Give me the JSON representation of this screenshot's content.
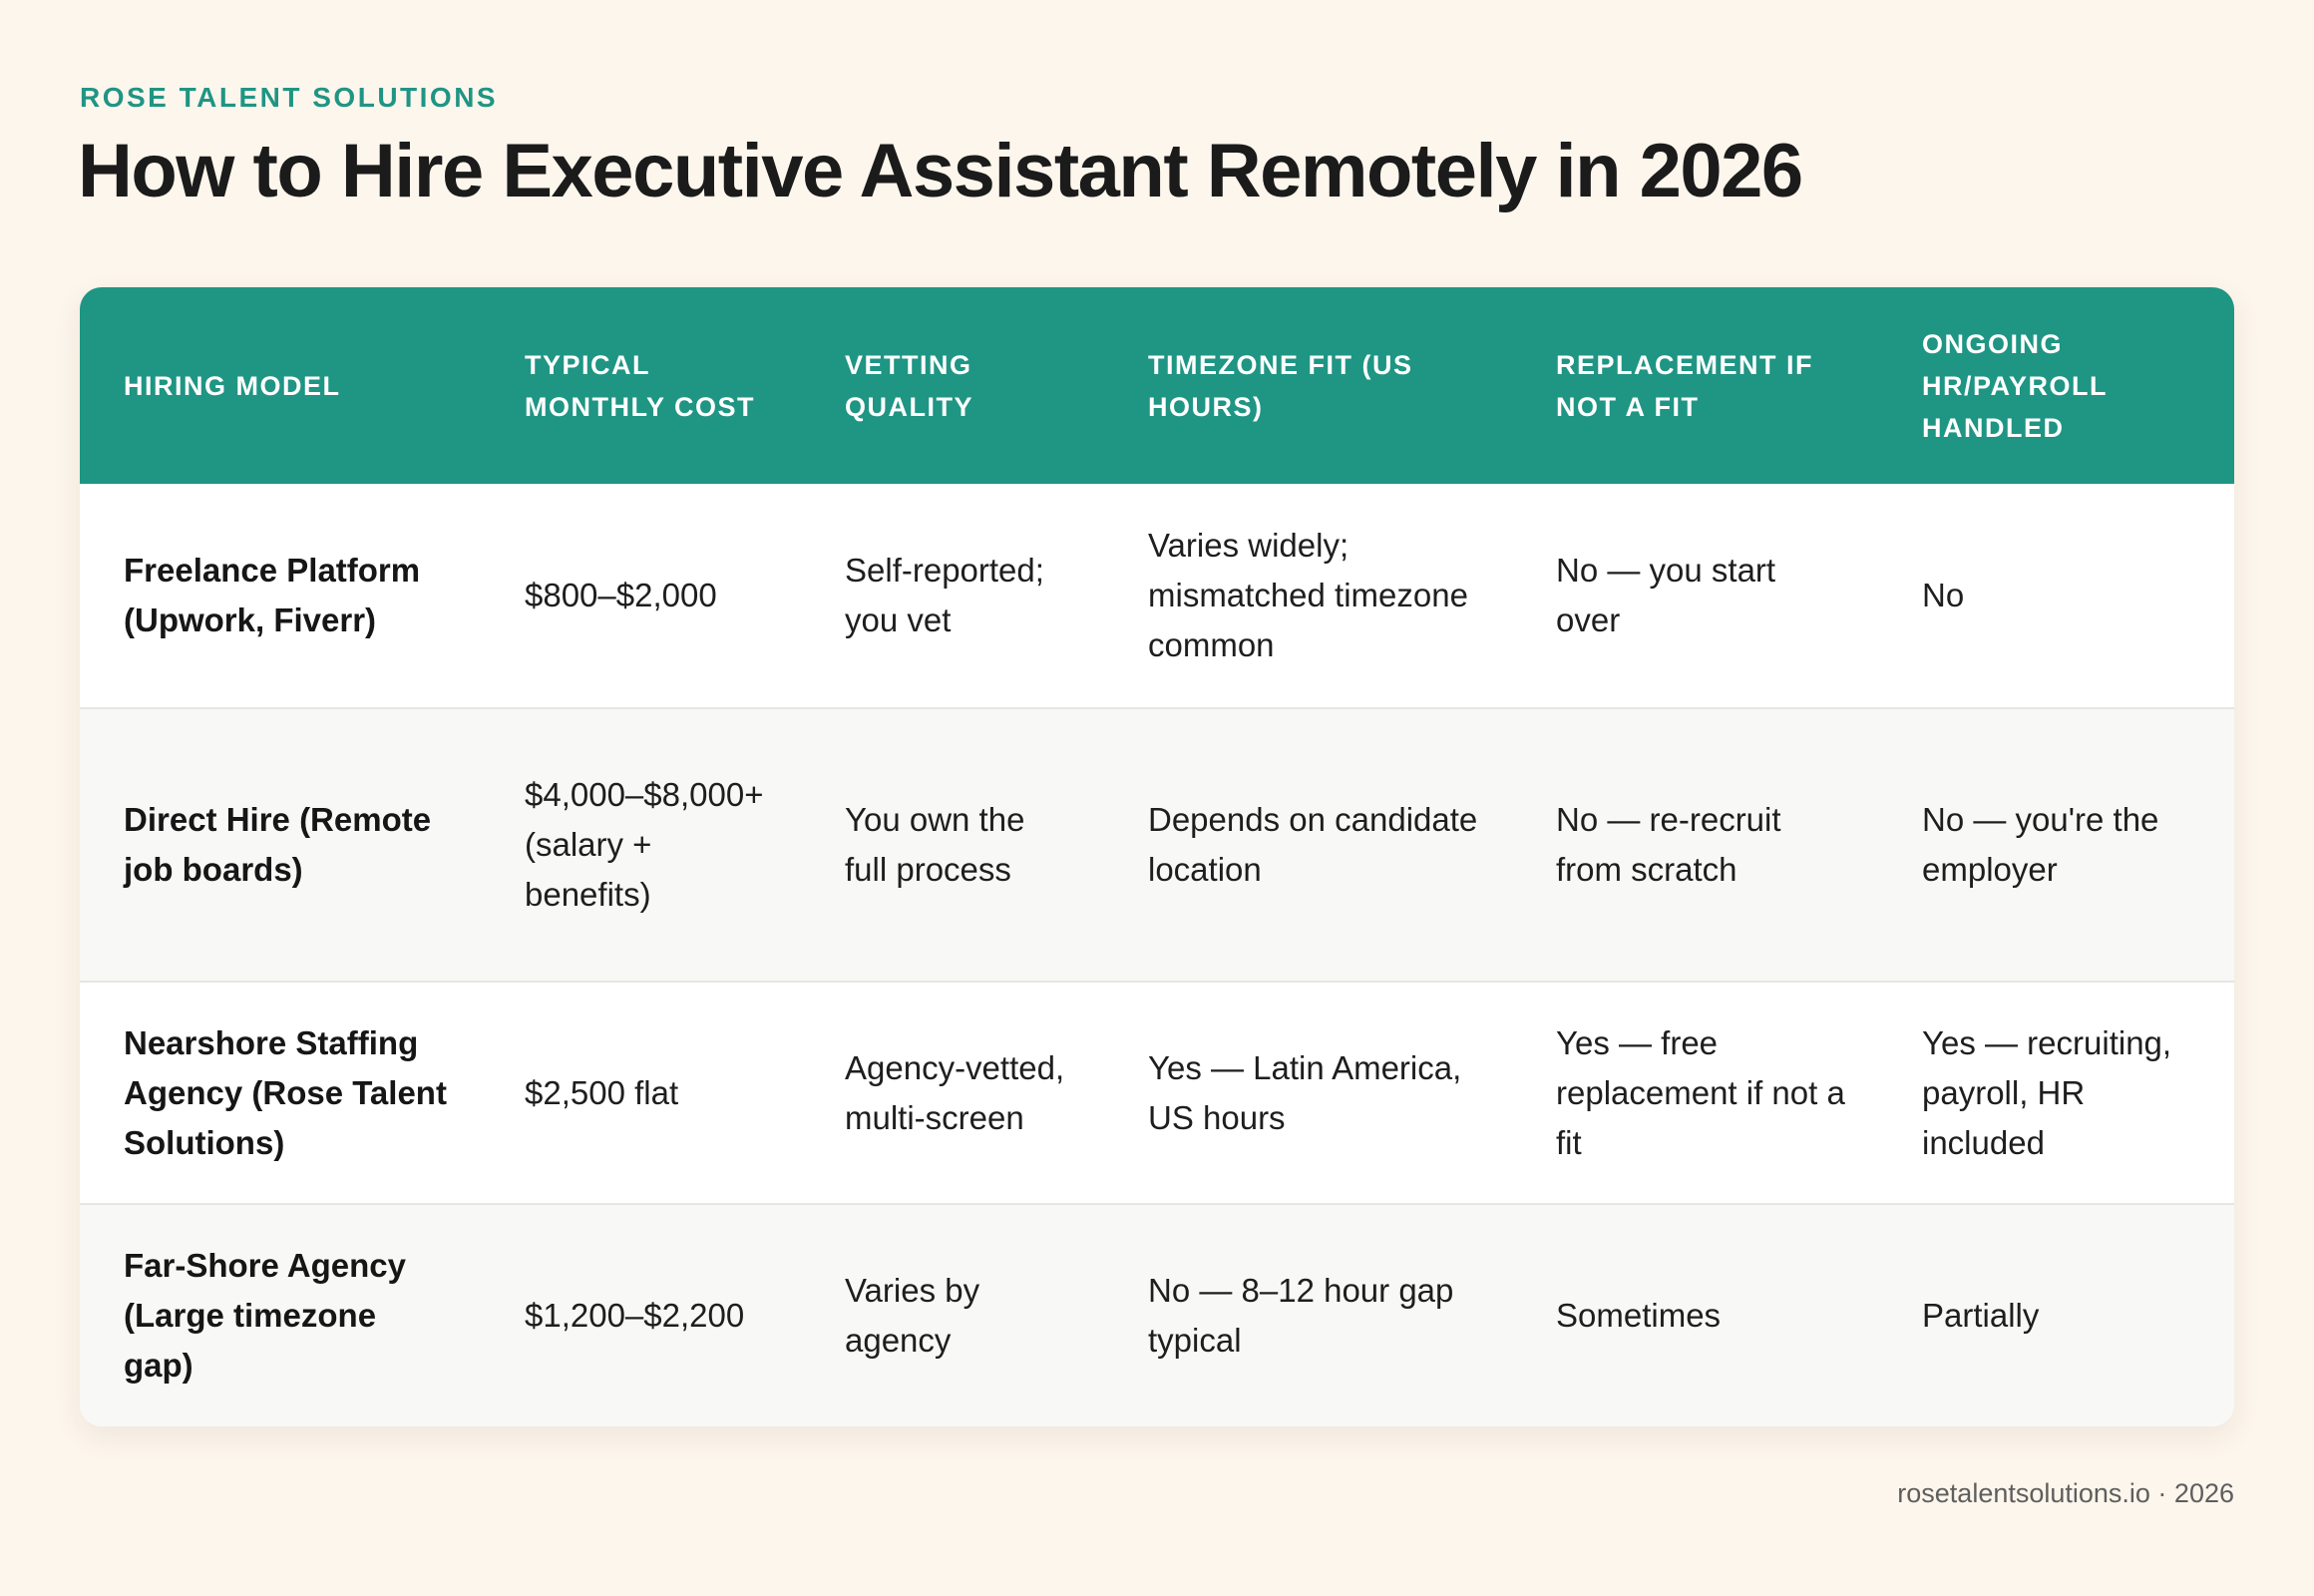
{
  "brand": "ROSE TALENT SOLUTIONS",
  "title": "How to Hire Executive Assistant Remotely in 2026",
  "table": {
    "headers": [
      "HIRING MODEL",
      "TYPICAL MONTHLY COST",
      "VETTING QUALITY",
      "TIMEZONE FIT (US HOURS)",
      "REPLACEMENT IF NOT A FIT",
      "ONGOING HR/PAYROLL HANDLED"
    ],
    "rows": [
      [
        "Freelance Platform (Upwork, Fiverr)",
        "$800–$2,000",
        "Self-reported; you vet",
        "Varies widely; mismatched timezone common",
        "No — you start over",
        "No"
      ],
      [
        "Direct Hire (Remote job boards)",
        "$4,000–$8,000+ (salary + benefits)",
        "You own the full process",
        "Depends on candidate location",
        "No — re-recruit from scratch",
        "No — you're the employer"
      ],
      [
        "Nearshore Staffing Agency (Rose Talent Solutions)",
        "$2,500 flat",
        "Agency-vetted, multi-screen",
        "Yes — Latin America, US hours",
        "Yes — free replacement if not a fit",
        "Yes — recruiting, payroll, HR included"
      ],
      [
        "Far-Shore Agency (Large timezone gap)",
        "$1,200–$2,200",
        "Varies by agency",
        "No — 8–12 hour gap typical",
        "Sometimes",
        "Partially"
      ]
    ]
  },
  "footer": "rosetalentsolutions.io · 2026",
  "colors": {
    "background": "#fdf6ec",
    "accent": "#1f9584",
    "alt_row": "#f8f8f7"
  }
}
